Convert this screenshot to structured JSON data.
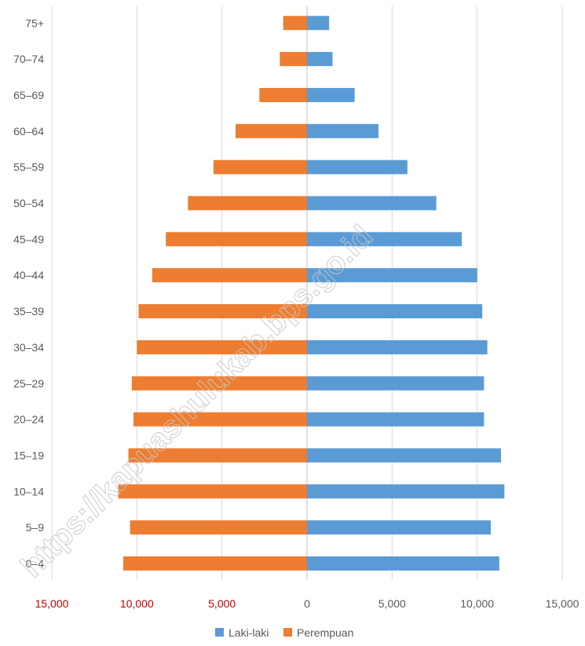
{
  "chart_data": {
    "type": "bar",
    "orientation": "horizontal",
    "subtype": "population-pyramid",
    "categories": [
      "0–4",
      "5–9",
      "10–14",
      "15–19",
      "20–24",
      "25–29",
      "30–34",
      "35–39",
      "40–44",
      "45–49",
      "50–54",
      "55–59",
      "60–64",
      "65–69",
      "70–74",
      "75+"
    ],
    "series": [
      {
        "name": "Laki-laki",
        "color": "#5b9bd5",
        "side": "right",
        "values": [
          11300,
          10800,
          11600,
          11400,
          10400,
          10400,
          10600,
          10300,
          10000,
          9100,
          7600,
          5900,
          4200,
          2800,
          1500,
          1300
        ]
      },
      {
        "name": "Perempuan",
        "color": "#ed7d31",
        "side": "left",
        "values": [
          10800,
          10400,
          11100,
          10500,
          10200,
          10300,
          10000,
          9900,
          9100,
          8300,
          7000,
          5500,
          4200,
          2800,
          1600,
          1400
        ]
      }
    ],
    "xlim": [
      -15000,
      15000
    ],
    "x_ticks": [
      {
        "value": -15000,
        "label": "15,000",
        "color": "#c00000"
      },
      {
        "value": -10000,
        "label": "10,000",
        "color": "#c00000"
      },
      {
        "value": -5000,
        "label": "5,000",
        "color": "#c00000"
      },
      {
        "value": 0,
        "label": "0",
        "color": "#595959"
      },
      {
        "value": 5000,
        "label": "5,000",
        "color": "#595959"
      },
      {
        "value": 10000,
        "label": "10,000",
        "color": "#595959"
      },
      {
        "value": 15000,
        "label": "15,000",
        "color": "#595959"
      }
    ],
    "grid": true,
    "legend_position": "bottom",
    "title": "",
    "xlabel": "",
    "ylabel": ""
  },
  "watermark": "https://kapuashulukab.bps.go.id"
}
